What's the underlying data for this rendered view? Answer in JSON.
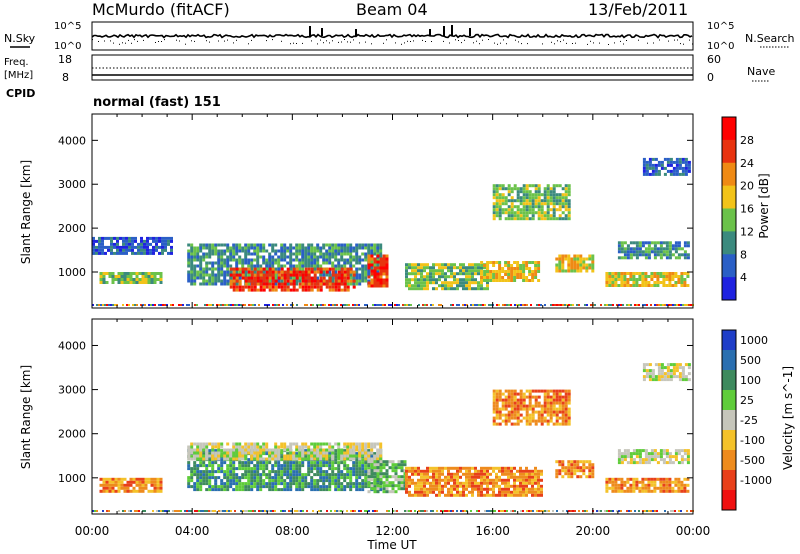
{
  "header": {
    "station": "McMurdo (fitACF)",
    "beam": "Beam 04",
    "date": "13/Feb/2011"
  },
  "noise_panel": {
    "left_label": "N.Sky",
    "right_label": "N.Search",
    "ticks": [
      "10^5",
      "10^0"
    ]
  },
  "freq_panel": {
    "left_label": "Freq.",
    "left_unit": "[MHz]",
    "left_ticks": [
      "18",
      "8"
    ],
    "right_label": "Nave",
    "right_ticks": [
      "60",
      "0"
    ]
  },
  "cpid": {
    "label": "CPID",
    "mode": "normal (fast) 151"
  },
  "chart_data": [
    {
      "type": "heatmap",
      "name": "power",
      "ylabel": "Slant Range [km]",
      "ylim": [
        180,
        4600
      ],
      "yticks": [
        "1000",
        "2000",
        "3000",
        "4000"
      ],
      "xlim_hours": [
        0,
        24
      ],
      "colorbar": {
        "label": "Power [dB]",
        "ticks": [
          "4",
          "8",
          "12",
          "16",
          "20",
          "24",
          "28"
        ],
        "colors": [
          "#1f22e0",
          "#2a5fc6",
          "#3b8a7e",
          "#6bc24a",
          "#f2c319",
          "#ef8a14",
          "#e8330f",
          "#ff0000"
        ]
      },
      "echo_regions": [
        {
          "t0": 0.3,
          "t1": 2.8,
          "r_lo": 750,
          "r_hi": 1000,
          "level": 3
        },
        {
          "t0": 0.0,
          "t1": 3.2,
          "r_lo": 1400,
          "r_hi": 1800,
          "level": 1
        },
        {
          "t0": 3.8,
          "t1": 11.5,
          "r_lo": 700,
          "r_hi": 1650,
          "level": 2
        },
        {
          "t0": 5.5,
          "t1": 10.5,
          "r_lo": 600,
          "r_hi": 1100,
          "level": 6
        },
        {
          "t0": 11.0,
          "t1": 11.8,
          "r_lo": 700,
          "r_hi": 1400,
          "level": 6
        },
        {
          "t0": 12.5,
          "t1": 15.8,
          "r_lo": 600,
          "r_hi": 1200,
          "level": 3
        },
        {
          "t0": 15.5,
          "t1": 17.8,
          "r_lo": 800,
          "r_hi": 1250,
          "level": 4
        },
        {
          "t0": 16.0,
          "t1": 19.0,
          "r_lo": 2200,
          "r_hi": 3000,
          "level": 3
        },
        {
          "t0": 18.5,
          "t1": 20.0,
          "r_lo": 1000,
          "r_hi": 1400,
          "level": 4
        },
        {
          "t0": 20.5,
          "t1": 23.8,
          "r_lo": 700,
          "r_hi": 1000,
          "level": 4
        },
        {
          "t0": 21.0,
          "t1": 23.8,
          "r_lo": 1300,
          "r_hi": 1700,
          "level": 2
        },
        {
          "t0": 22.0,
          "t1": 23.8,
          "r_lo": 3250,
          "r_hi": 3600,
          "level": 1
        }
      ]
    },
    {
      "type": "heatmap",
      "name": "velocity",
      "ylabel": "Slant Range [km]",
      "ylim": [
        180,
        4600
      ],
      "yticks": [
        "1000",
        "2000",
        "3000",
        "4000"
      ],
      "xlabel": "Time UT",
      "xticks": [
        "00:00",
        "04:00",
        "08:00",
        "12:00",
        "16:00",
        "20:00",
        "00:00"
      ],
      "xlim_hours": [
        0,
        24
      ],
      "colorbar": {
        "label": "Velocity [m s^-1]",
        "ticks": [
          "1000",
          "500",
          "100",
          "25",
          "-25",
          "-100",
          "-500",
          "-1000"
        ],
        "colors": [
          "#1f3ec8",
          "#2a6fb0",
          "#3e8a5e",
          "#5fcc3a",
          "#c6c6bb",
          "#f4c22a",
          "#ee8b1d",
          "#e8401a",
          "#ef1010"
        ]
      },
      "echo_regions": [
        {
          "t0": 0.3,
          "t1": 2.8,
          "r_lo": 700,
          "r_hi": 1000,
          "level": 6
        },
        {
          "t0": 3.8,
          "t1": 11.5,
          "r_lo": 700,
          "r_hi": 1650,
          "level": 2
        },
        {
          "t0": 3.8,
          "t1": 11.5,
          "r_lo": 1450,
          "r_hi": 1800,
          "level": 4
        },
        {
          "t0": 11.0,
          "t1": 12.5,
          "r_lo": 700,
          "r_hi": 1400,
          "level": 3
        },
        {
          "t0": 12.5,
          "t1": 18.0,
          "r_lo": 600,
          "r_hi": 1250,
          "level": 6
        },
        {
          "t0": 16.0,
          "t1": 19.0,
          "r_lo": 2200,
          "r_hi": 3000,
          "level": 6
        },
        {
          "t0": 18.5,
          "t1": 20.0,
          "r_lo": 1000,
          "r_hi": 1400,
          "level": 6
        },
        {
          "t0": 20.5,
          "t1": 23.8,
          "r_lo": 700,
          "r_hi": 1000,
          "level": 6
        },
        {
          "t0": 21.0,
          "t1": 23.8,
          "r_lo": 1350,
          "r_hi": 1650,
          "level": 4
        },
        {
          "t0": 22.0,
          "t1": 23.8,
          "r_lo": 3250,
          "r_hi": 3600,
          "level": 4
        }
      ]
    }
  ]
}
